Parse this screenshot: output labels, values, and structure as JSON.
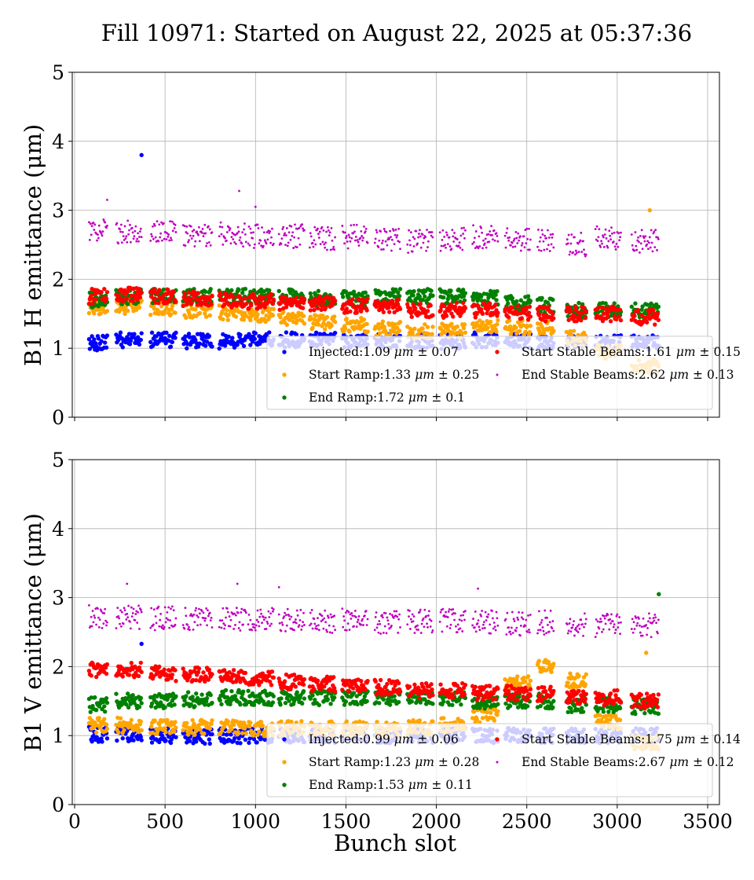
{
  "chart_data": {
    "title": "Fill 10971: Started on August 22, 2025 at 05:37:36",
    "xlabel": "Bunch slot",
    "type": "scatter",
    "xlim": [
      0,
      3500
    ],
    "xticks": [
      0,
      500,
      1000,
      1500,
      2000,
      2500,
      3000,
      3500
    ],
    "grid": true,
    "legend_placement": "lower-right",
    "train_slot_ranges": [
      [
        80,
        180
      ],
      [
        230,
        370
      ],
      [
        420,
        560
      ],
      [
        600,
        760
      ],
      [
        800,
        950
      ],
      [
        960,
        1100
      ],
      [
        1130,
        1270
      ],
      [
        1300,
        1440
      ],
      [
        1480,
        1620
      ],
      [
        1660,
        1800
      ],
      [
        1840,
        1980
      ],
      [
        2020,
        2160
      ],
      [
        2200,
        2340
      ],
      [
        2380,
        2520
      ],
      [
        2560,
        2650
      ],
      [
        2720,
        2830
      ],
      [
        2880,
        3020
      ],
      [
        3080,
        3230
      ]
    ],
    "panels": [
      {
        "ylabel": "B1 H emittance (μm)",
        "ylim": [
          0,
          5
        ],
        "yticks": [
          0,
          1,
          2,
          3,
          4,
          5
        ],
        "series": [
          {
            "name": "Injected",
            "mean": "1.09",
            "std": "0.07",
            "color": "#0000ff",
            "train_values": [
              1.08,
              1.12,
              1.12,
              1.1,
              1.1,
              1.12,
              1.12,
              1.12,
              1.12,
              1.1,
              1.1,
              1.1,
              1.12,
              1.1,
              1.1,
              1.1,
              1.08,
              1.08
            ],
            "outliers": [
              [
                370,
                3.8
              ]
            ]
          },
          {
            "name": "Start Ramp",
            "mean": "1.33",
            "std": "0.25",
            "color": "#ffa500",
            "train_values": [
              1.6,
              1.6,
              1.58,
              1.55,
              1.52,
              1.48,
              1.42,
              1.38,
              1.33,
              1.28,
              1.25,
              1.25,
              1.3,
              1.3,
              1.3,
              1.15,
              0.95,
              0.75
            ],
            "outliers": [
              [
                3180,
                3.0
              ]
            ]
          },
          {
            "name": "End Ramp",
            "mean": "1.72",
            "std": "0.1",
            "color": "#008000",
            "train_values": [
              1.7,
              1.75,
              1.75,
              1.75,
              1.75,
              1.75,
              1.75,
              1.72,
              1.72,
              1.75,
              1.75,
              1.75,
              1.72,
              1.65,
              1.62,
              1.55,
              1.55,
              1.55
            ],
            "outliers": []
          },
          {
            "name": "Start Stable Beams",
            "mean": "1.61",
            "std": "0.15",
            "color": "#ff0000",
            "train_values": [
              1.75,
              1.78,
              1.75,
              1.72,
              1.7,
              1.68,
              1.65,
              1.65,
              1.62,
              1.6,
              1.55,
              1.55,
              1.55,
              1.5,
              1.5,
              1.5,
              1.5,
              1.45
            ],
            "outliers": []
          },
          {
            "name": "End Stable Beams",
            "mean": "2.62",
            "std": "0.13",
            "color": "#bf00bf",
            "train_values": [
              2.7,
              2.68,
              2.68,
              2.65,
              2.65,
              2.62,
              2.62,
              2.6,
              2.62,
              2.58,
              2.55,
              2.58,
              2.62,
              2.58,
              2.55,
              2.5,
              2.6,
              2.55
            ],
            "outliers": [
              [
                180,
                3.15
              ],
              [
                910,
                3.28
              ],
              [
                1000,
                3.05
              ]
            ]
          }
        ]
      },
      {
        "ylabel": "B1 V emittance (μm)",
        "ylim": [
          0,
          5
        ],
        "yticks": [
          0,
          1,
          2,
          3,
          4,
          5
        ],
        "series": [
          {
            "name": "Injected",
            "mean": "0.99",
            "std": "0.06",
            "color": "#0000ff",
            "train_values": [
              1.02,
              1.02,
              1.0,
              0.98,
              1.0,
              1.0,
              1.0,
              1.0,
              1.0,
              1.0,
              1.0,
              1.0,
              1.0,
              1.0,
              1.0,
              1.0,
              1.0,
              1.0
            ],
            "outliers": [
              [
                370,
                2.33
              ]
            ]
          },
          {
            "name": "Start Ramp",
            "mean": "1.23",
            "std": "0.28",
            "color": "#ffa500",
            "train_values": [
              1.15,
              1.15,
              1.12,
              1.12,
              1.12,
              1.1,
              1.1,
              1.1,
              1.1,
              1.1,
              1.12,
              1.15,
              1.3,
              1.75,
              2.0,
              1.8,
              1.2,
              0.9
            ],
            "outliers": [
              [
                3160,
                2.2
              ]
            ]
          },
          {
            "name": "End Ramp",
            "mean": "1.53",
            "std": "0.11",
            "color": "#008000",
            "train_values": [
              1.45,
              1.5,
              1.5,
              1.52,
              1.55,
              1.55,
              1.55,
              1.55,
              1.55,
              1.55,
              1.55,
              1.55,
              1.5,
              1.5,
              1.5,
              1.45,
              1.45,
              1.42
            ],
            "outliers": [
              [
                3230,
                3.05
              ]
            ]
          },
          {
            "name": "Start Stable Beams",
            "mean": "1.75",
            "std": "0.14",
            "color": "#ff0000",
            "train_values": [
              1.95,
              1.95,
              1.9,
              1.88,
              1.85,
              1.82,
              1.78,
              1.75,
              1.72,
              1.7,
              1.65,
              1.65,
              1.62,
              1.62,
              1.6,
              1.55,
              1.55,
              1.5
            ],
            "outliers": []
          },
          {
            "name": "End Stable Beams",
            "mean": "2.67",
            "std": "0.12",
            "color": "#bf00bf",
            "train_values": [
              2.72,
              2.72,
              2.7,
              2.7,
              2.68,
              2.68,
              2.68,
              2.66,
              2.68,
              2.65,
              2.66,
              2.66,
              2.64,
              2.62,
              2.64,
              2.6,
              2.6,
              2.6
            ],
            "outliers": [
              [
                290,
                3.2
              ],
              [
                900,
                3.2
              ],
              [
                1130,
                3.15
              ],
              [
                2230,
                3.13
              ]
            ]
          }
        ]
      }
    ]
  }
}
